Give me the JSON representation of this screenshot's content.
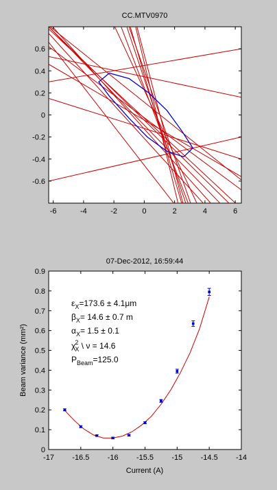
{
  "chart_data": [
    {
      "type": "line",
      "title": "CC.MTV0970",
      "xlabel": "",
      "ylabel": "",
      "xlim": [
        -6.3,
        6.4
      ],
      "ylim": [
        -0.8,
        0.8
      ],
      "xticks": [
        -6,
        -4,
        -2,
        0,
        2,
        4,
        6
      ],
      "yticks": [
        -0.6,
        -0.4,
        -0.2,
        0,
        0.2,
        0.4,
        0.6
      ],
      "colors": {
        "lines": "#cc0000",
        "ellipse": "#0000cc"
      },
      "ellipse_contour": [
        [
          -2.3,
          0.38
        ],
        [
          -1.0,
          0.33
        ],
        [
          0.3,
          0.2
        ],
        [
          1.5,
          0.04
        ],
        [
          2.5,
          -0.15
        ],
        [
          3.2,
          -0.3
        ],
        [
          2.6,
          -0.38
        ],
        [
          1.5,
          -0.33
        ],
        [
          0.2,
          -0.2
        ],
        [
          -1.0,
          -0.03
        ],
        [
          -2.3,
          0.17
        ],
        [
          -3.0,
          0.3
        ],
        [
          -2.3,
          0.38
        ]
      ],
      "lines": [
        [
          [
            -6.3,
            0.66
          ],
          [
            6.4,
            -1.59
          ]
        ],
        [
          [
            -6.3,
            0.74
          ],
          [
            6.4,
            -1.18
          ]
        ],
        [
          [
            -6.3,
            0.84
          ],
          [
            6.4,
            -1.11
          ]
        ],
        [
          [
            -6.3,
            0.8
          ],
          [
            6.4,
            -1.0
          ]
        ],
        [
          [
            -6.3,
            0.8
          ],
          [
            6.4,
            -0.91
          ]
        ],
        [
          [
            -6.3,
            0.78
          ],
          [
            6.4,
            -0.85
          ]
        ],
        [
          [
            -6.3,
            0.62
          ],
          [
            6.4,
            -0.68
          ]
        ],
        [
          [
            -6.3,
            0.46
          ],
          [
            6.4,
            -0.56
          ]
        ],
        [
          [
            -6.3,
            0.15
          ],
          [
            6.4,
            -0.4
          ]
        ],
        [
          [
            -6.3,
            -0.6
          ],
          [
            6.4,
            -0.2
          ]
        ],
        [
          [
            -6.3,
            0.3
          ],
          [
            6.4,
            0.6
          ]
        ],
        [
          [
            -6.3,
            0.53
          ],
          [
            6.4,
            0.16
          ]
        ],
        [
          [
            -6.3,
            0.81
          ],
          [
            6.4,
            -0.59
          ]
        ],
        [
          [
            -6.3,
            2.09
          ],
          [
            6.4,
            -1.67
          ]
        ],
        [
          [
            -6.3,
            2.53
          ],
          [
            6.4,
            -2.07
          ]
        ],
        [
          [
            -6.3,
            2.92
          ],
          [
            6.4,
            -2.31
          ]
        ],
        [
          [
            -6.3,
            3.34
          ],
          [
            6.4,
            -2.66
          ]
        ],
        [
          [
            -6.3,
            2.89
          ],
          [
            6.4,
            -2.12
          ]
        ],
        [
          [
            -6.3,
            4.08
          ],
          [
            6.4,
            -3.19
          ]
        ],
        [
          [
            -6.3,
            3.87
          ],
          [
            6.4,
            -2.83
          ]
        ]
      ]
    },
    {
      "type": "scatter",
      "title": "07-Dec-2012, 16:59:44",
      "xlabel": "Current (A)",
      "ylabel": "Beam variance (mm²)",
      "xlim": [
        -17,
        -14
      ],
      "ylim": [
        0,
        0.9
      ],
      "xticks": [
        -17,
        -16.5,
        -16,
        -15.5,
        -15,
        -14.5,
        -14
      ],
      "yticks": [
        0,
        0.1,
        0.2,
        0.3,
        0.4,
        0.5,
        0.6,
        0.7,
        0.8,
        0.9
      ],
      "colors": {
        "points": "#0000cc",
        "fit": "#cc0000"
      },
      "points": {
        "x": [
          -16.75,
          -16.5,
          -16.25,
          -16.0,
          -15.75,
          -15.5,
          -15.25,
          -15.0,
          -14.75,
          -14.5
        ],
        "y": [
          0.2,
          0.115,
          0.07,
          0.058,
          0.072,
          0.135,
          0.245,
          0.395,
          0.635,
          0.795
        ],
        "err": [
          0.005,
          0.005,
          0.004,
          0.004,
          0.004,
          0.005,
          0.007,
          0.01,
          0.014,
          0.018
        ]
      },
      "fit_curve": {
        "x": [
          -16.75,
          -16.6,
          -16.45,
          -16.3,
          -16.15,
          -16.0,
          -15.85,
          -15.7,
          -15.55,
          -15.4,
          -15.25,
          -15.1,
          -14.95,
          -14.8,
          -14.65,
          -14.5
        ],
        "y": [
          0.197,
          0.146,
          0.103,
          0.073,
          0.058,
          0.058,
          0.068,
          0.09,
          0.124,
          0.168,
          0.228,
          0.3,
          0.387,
          0.487,
          0.61,
          0.77
        ]
      },
      "annotations": {
        "emittance": {
          "symbol": "ε",
          "sub": "X",
          "text": "=173.6 ± 4.1μm"
        },
        "beta": {
          "symbol": "β",
          "sub": "X",
          "text": "= 14.6 ± 0.7 m"
        },
        "alpha": {
          "symbol": "α",
          "sub": "X",
          "text": "=  1.5 ± 0.1"
        },
        "chi2": {
          "symbol": "χ",
          "sup": "2",
          "sub": "X",
          "text": " \\ ν = 14.6"
        },
        "power": {
          "symbol": "P",
          "sub": "Beam",
          "text": "=125.0"
        }
      }
    }
  ]
}
